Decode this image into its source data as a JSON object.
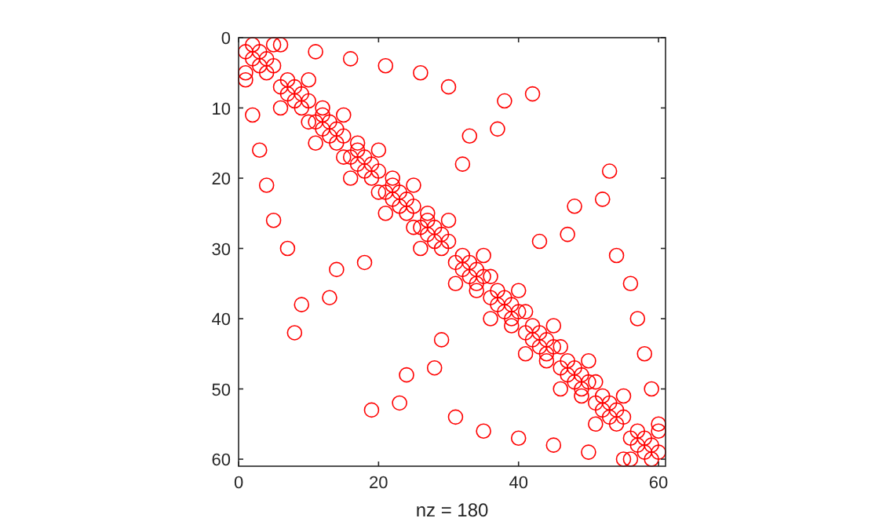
{
  "chart_data": {
    "type": "scatter",
    "xlabel": "nz = 180",
    "xlim": [
      0,
      61
    ],
    "ylim": [
      61,
      0
    ],
    "xticks": [
      0,
      20,
      40,
      60
    ],
    "yticks": [
      0,
      10,
      20,
      30,
      40,
      50,
      60
    ],
    "grid": false,
    "marker": "circle",
    "series": [
      {
        "color": "#ff0000",
        "x": [
          2,
          5,
          6,
          1,
          3,
          11,
          2,
          4,
          16,
          3,
          5,
          21,
          1,
          4,
          26,
          1,
          7,
          10,
          6,
          8,
          30,
          7,
          9,
          42,
          8,
          10,
          38,
          6,
          9,
          12,
          2,
          12,
          15,
          10,
          11,
          13,
          12,
          14,
          37,
          13,
          15,
          33,
          11,
          14,
          17,
          3,
          17,
          20,
          15,
          16,
          18,
          17,
          19,
          32,
          18,
          20,
          53,
          16,
          19,
          22,
          4,
          22,
          25,
          20,
          21,
          23,
          22,
          24,
          52,
          23,
          25,
          48,
          21,
          24,
          27,
          5,
          27,
          30,
          25,
          26,
          28,
          27,
          29,
          47,
          28,
          30,
          43,
          7,
          26,
          29,
          32,
          35,
          54,
          18,
          31,
          33,
          14,
          32,
          34,
          33,
          35,
          36,
          31,
          34,
          56,
          34,
          37,
          40,
          13,
          36,
          38,
          9,
          37,
          39,
          38,
          40,
          41,
          36,
          39,
          57,
          39,
          42,
          45,
          8,
          41,
          43,
          29,
          42,
          44,
          43,
          45,
          46,
          41,
          44,
          58,
          44,
          47,
          50,
          28,
          46,
          48,
          24,
          47,
          49,
          48,
          50,
          51,
          46,
          49,
          59,
          49,
          52,
          55,
          23,
          51,
          53,
          19,
          52,
          54,
          31,
          53,
          55,
          51,
          54,
          60,
          35,
          57,
          60,
          40,
          56,
          58,
          45,
          57,
          59,
          50,
          58,
          60,
          55,
          56,
          59
        ],
        "values": [
          1,
          1,
          1,
          2,
          2,
          2,
          3,
          3,
          3,
          4,
          4,
          4,
          5,
          5,
          5,
          6,
          6,
          6,
          7,
          7,
          7,
          8,
          8,
          8,
          9,
          9,
          9,
          10,
          10,
          10,
          11,
          11,
          11,
          12,
          12,
          12,
          13,
          13,
          13,
          14,
          14,
          14,
          15,
          15,
          15,
          16,
          16,
          16,
          17,
          17,
          17,
          18,
          18,
          18,
          19,
          19,
          19,
          20,
          20,
          20,
          21,
          21,
          21,
          22,
          22,
          22,
          23,
          23,
          23,
          24,
          24,
          24,
          25,
          25,
          25,
          26,
          26,
          26,
          27,
          27,
          27,
          28,
          28,
          28,
          29,
          29,
          29,
          30,
          30,
          30,
          31,
          31,
          31,
          32,
          32,
          32,
          33,
          33,
          33,
          34,
          34,
          34,
          35,
          35,
          35,
          36,
          36,
          36,
          37,
          37,
          37,
          38,
          38,
          38,
          39,
          39,
          39,
          40,
          40,
          40,
          41,
          41,
          41,
          42,
          42,
          42,
          43,
          43,
          43,
          44,
          44,
          44,
          45,
          45,
          45,
          46,
          46,
          46,
          47,
          47,
          47,
          48,
          48,
          48,
          49,
          49,
          49,
          50,
          50,
          50,
          51,
          51,
          51,
          52,
          52,
          52,
          53,
          53,
          53,
          54,
          54,
          54,
          55,
          55,
          55,
          56,
          56,
          56,
          57,
          57,
          57,
          58,
          58,
          58,
          59,
          59,
          59,
          60,
          60,
          60
        ]
      }
    ]
  }
}
